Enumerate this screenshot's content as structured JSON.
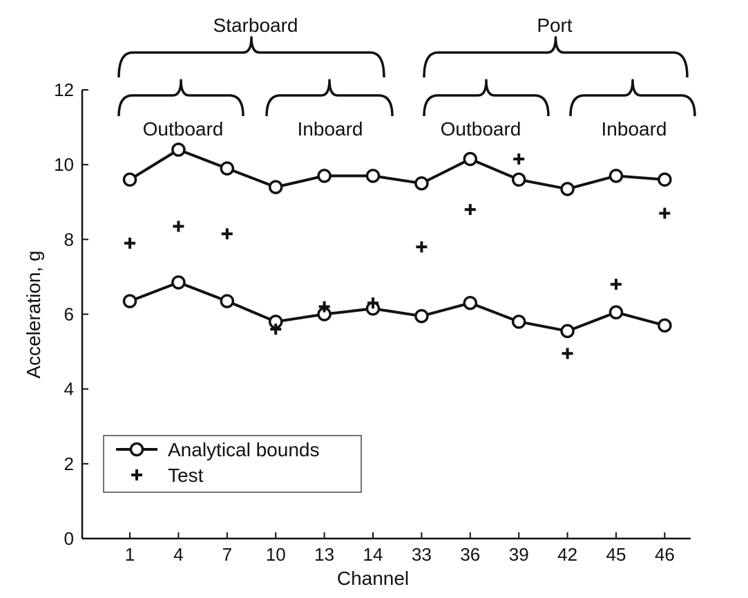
{
  "chart_data": {
    "type": "line",
    "xlabel": "Channel",
    "ylabel": "Acceleration, g",
    "ylim": [
      0,
      12
    ],
    "yticks": [
      "0",
      "2",
      "4",
      "6",
      "8",
      "10",
      "12"
    ],
    "categories": [
      "1",
      "4",
      "7",
      "10",
      "13",
      "14",
      "33",
      "36",
      "39",
      "42",
      "45",
      "46"
    ],
    "series": [
      {
        "name": "Analytical bounds",
        "style": "line-circle",
        "color": "#111111",
        "values": [
          9.6,
          10.4,
          9.9,
          9.4,
          9.7,
          9.7,
          9.5,
          10.15,
          9.6,
          9.35,
          9.7,
          9.6
        ]
      },
      {
        "name": "",
        "style": "line-circle",
        "color": "#111111",
        "values": [
          6.35,
          6.85,
          6.35,
          5.8,
          6.0,
          6.15,
          5.95,
          6.3,
          5.8,
          5.55,
          6.05,
          5.7
        ]
      },
      {
        "name": "Test",
        "style": "plus",
        "color": "#111111",
        "values": [
          7.9,
          8.35,
          8.15,
          5.6,
          6.2,
          6.3,
          7.8,
          8.8,
          10.15,
          4.95,
          6.8,
          8.7
        ]
      }
    ],
    "legend": {
      "position": "lower-left",
      "entries": [
        "Analytical bounds",
        "Test"
      ]
    },
    "group_labels": {
      "top": [
        "Starboard",
        "Port"
      ],
      "sub": [
        "Outboard",
        "Inboard",
        "Outboard",
        "Inboard"
      ]
    },
    "grid": false
  }
}
